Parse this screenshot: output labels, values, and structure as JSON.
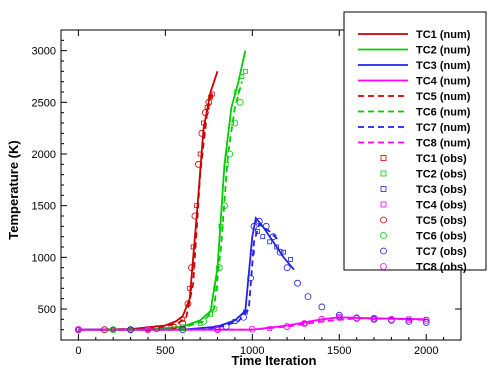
{
  "chart_data": {
    "type": "line",
    "title": "",
    "xlabel": "Time Iteration",
    "ylabel": "Temperature (K)",
    "xlim": [
      -100,
      2200
    ],
    "ylim": [
      200,
      3200
    ],
    "xticks": [
      0,
      500,
      1000,
      1500,
      2000
    ],
    "yticks": [
      500,
      1000,
      1500,
      2000,
      2500,
      3000
    ],
    "xtick_labels": [
      "0",
      "500",
      "1000",
      "1500",
      "2000"
    ],
    "ytick_labels": [
      "500",
      "1000",
      "1500",
      "2000",
      "2500",
      "3000"
    ],
    "grid": false,
    "legend_position": "top-right",
    "series": [
      {
        "name": "TC1 (num)",
        "style": "solid",
        "color": "#cc0000",
        "x": [
          0,
          300,
          500,
          560,
          600,
          640,
          680,
          720,
          760,
          800
        ],
        "y": [
          300,
          305,
          340,
          380,
          430,
          600,
          1400,
          2250,
          2600,
          2800
        ]
      },
      {
        "name": "TC2 (num)",
        "style": "solid",
        "color": "#00cc00",
        "x": [
          0,
          400,
          600,
          700,
          760,
          800,
          840,
          880,
          920,
          960
        ],
        "y": [
          300,
          300,
          330,
          390,
          480,
          900,
          1900,
          2450,
          2700,
          3000
        ]
      },
      {
        "name": "TC3 (num)",
        "style": "solid",
        "color": "#2222ee",
        "x": [
          0,
          600,
          800,
          900,
          960,
          1000,
          1020,
          1060,
          1120,
          1180,
          1240
        ],
        "y": [
          300,
          300,
          330,
          390,
          480,
          1200,
          1380,
          1300,
          1150,
          1000,
          880
        ]
      },
      {
        "name": "TC4 (num)",
        "style": "solid",
        "color": "#ff00ff",
        "x": [
          0,
          1000,
          1200,
          1400,
          1500,
          1700,
          2000
        ],
        "y": [
          300,
          300,
          340,
          400,
          420,
          410,
          400
        ]
      },
      {
        "name": "TC5 (num)",
        "style": "dashed",
        "color": "#cc0000",
        "x": [
          0,
          300,
          500,
          580,
          620,
          660,
          700,
          740,
          770
        ],
        "y": [
          300,
          305,
          330,
          370,
          420,
          750,
          1800,
          2400,
          2600
        ]
      },
      {
        "name": "TC6 (num)",
        "style": "dashed",
        "color": "#00cc00",
        "x": [
          0,
          400,
          600,
          720,
          780,
          820,
          860,
          900,
          940
        ],
        "y": [
          300,
          300,
          320,
          380,
          500,
          1100,
          2000,
          2450,
          2700
        ]
      },
      {
        "name": "TC7 (num)",
        "style": "dashed",
        "color": "#2222ee",
        "x": [
          0,
          600,
          800,
          920,
          980,
          1010,
          1040,
          1100,
          1160
        ],
        "y": [
          300,
          300,
          320,
          380,
          500,
          1150,
          1320,
          1250,
          1150
        ]
      },
      {
        "name": "TC8 (num)",
        "style": "dashed",
        "color": "#ff00ff",
        "x": [
          0,
          1000,
          1200,
          1400,
          1600,
          1800,
          2000
        ],
        "y": [
          300,
          300,
          330,
          380,
          410,
          405,
          395
        ]
      },
      {
        "name": "TC1 (obs)",
        "marker": "square",
        "color": "#cc0000",
        "x": [
          0,
          200,
          400,
          550,
          600,
          640,
          660,
          680,
          700,
          720,
          740,
          760,
          770
        ],
        "y": [
          300,
          300,
          310,
          330,
          400,
          700,
          1100,
          1500,
          2000,
          2300,
          2450,
          2550,
          2580
        ]
      },
      {
        "name": "TC2 (obs)",
        "marker": "square",
        "color": "#00cc00",
        "x": [
          0,
          300,
          600,
          700,
          760,
          790,
          820,
          850,
          880,
          910,
          940,
          960
        ],
        "y": [
          300,
          300,
          310,
          360,
          450,
          700,
          1300,
          1900,
          2300,
          2600,
          2750,
          2800
        ]
      },
      {
        "name": "TC3 (obs)",
        "marker": "square",
        "color": "#2222ee",
        "x": [
          0,
          400,
          800,
          900,
          960,
          1000,
          1030,
          1060,
          1100,
          1140,
          1180,
          1220
        ],
        "y": [
          300,
          300,
          320,
          380,
          470,
          1050,
          1250,
          1200,
          1150,
          1100,
          1050,
          980
        ]
      },
      {
        "name": "TC4 (obs)",
        "marker": "square",
        "color": "#ff00ff",
        "x": [
          0,
          400,
          800,
          1100,
          1300,
          1500,
          1700,
          1900,
          2000
        ],
        "y": [
          300,
          300,
          300,
          310,
          360,
          420,
          415,
          405,
          400
        ]
      },
      {
        "name": "TC5 (obs)",
        "marker": "circle",
        "color": "#cc0000",
        "x": [
          0,
          150,
          300,
          450,
          600,
          630,
          650,
          670,
          690,
          710,
          730,
          750
        ],
        "y": [
          300,
          300,
          300,
          310,
          360,
          550,
          900,
          1400,
          1900,
          2200,
          2400,
          2500
        ]
      },
      {
        "name": "TC6 (obs)",
        "marker": "circle",
        "color": "#00cc00",
        "x": [
          0,
          200,
          400,
          600,
          720,
          780,
          810,
          840,
          870,
          900,
          930
        ],
        "y": [
          300,
          300,
          300,
          320,
          380,
          500,
          900,
          1500,
          2000,
          2300,
          2500
        ]
      },
      {
        "name": "TC7 (obs)",
        "marker": "circle",
        "color": "#2222ee",
        "x": [
          0,
          300,
          600,
          850,
          950,
          990,
          1010,
          1040,
          1080,
          1120,
          1160,
          1200,
          1260,
          1320,
          1400,
          1500,
          1600,
          1700,
          1800,
          1900,
          2000
        ],
        "y": [
          300,
          300,
          300,
          330,
          420,
          800,
          1300,
          1350,
          1300,
          1200,
          1050,
          900,
          750,
          620,
          520,
          440,
          410,
          400,
          390,
          380,
          370
        ]
      },
      {
        "name": "TC8 (obs)",
        "marker": "circle",
        "color": "#ff00ff",
        "x": [
          0,
          400,
          800,
          1000,
          1200,
          1300,
          1400,
          1500,
          1600,
          1700,
          1800,
          1900,
          2000
        ],
        "y": [
          300,
          300,
          300,
          305,
          330,
          360,
          400,
          420,
          415,
          410,
          400,
          395,
          390
        ]
      }
    ]
  }
}
